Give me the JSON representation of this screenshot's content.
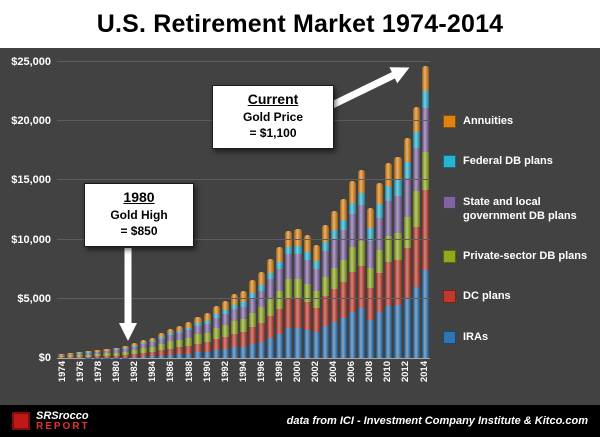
{
  "title": "U.S. Retirement Market 1974-2014",
  "annotations": {
    "current": {
      "heading": "Current",
      "line1": "Gold Price",
      "line2": "= $1,100"
    },
    "gold1980": {
      "heading": "1980",
      "line1": "Gold High",
      "line2": "= $850"
    }
  },
  "footer": {
    "logo_line1": "SRSrocco",
    "logo_line2": "REPORT",
    "source": "data from ICI - Investment Company Institute & Kitco.com"
  },
  "colors": {
    "background": "#424242",
    "annuities": "#e0820f",
    "federal_db": "#27b3d4",
    "state_local_db": "#8064a2",
    "private_db": "#8faa1b",
    "dc_plans": "#c0392b",
    "iras": "#2e75b6"
  },
  "chart_data": {
    "type": "bar",
    "stacked": true,
    "title": "U.S. Retirement Market 1974-2014",
    "xlabel": "",
    "ylabel": "",
    "ylim": [
      0,
      25000
    ],
    "yticks": [
      "$0",
      "$5,000",
      "$10,000",
      "$15,000",
      "$20,000",
      "$25,000"
    ],
    "grid": true,
    "legend_position": "right",
    "categories": [
      "1974",
      "1975",
      "1976",
      "1977",
      "1978",
      "1979",
      "1980",
      "1981",
      "1982",
      "1983",
      "1984",
      "1985",
      "1986",
      "1987",
      "1988",
      "1989",
      "1990",
      "1991",
      "1992",
      "1993",
      "1994",
      "1995",
      "1996",
      "1997",
      "1998",
      "1999",
      "2000",
      "2001",
      "2002",
      "2003",
      "2004",
      "2005",
      "2006",
      "2007",
      "2008",
      "2009",
      "2010",
      "2011",
      "2012",
      "2013",
      "2014"
    ],
    "xticks": [
      "1974",
      "1976",
      "1978",
      "1980",
      "1982",
      "1984",
      "1986",
      "1988",
      "1990",
      "1992",
      "1994",
      "1996",
      "1998",
      "2000",
      "2002",
      "2004",
      "2006",
      "2008",
      "2010",
      "2012",
      "2014"
    ],
    "series": [
      {
        "name": "IRAs",
        "color": "#2e75b6",
        "values": [
          3,
          4,
          6,
          9,
          12,
          16,
          25,
          38,
          58,
          92,
          132,
          200,
          250,
          310,
          380,
          480,
          540,
          680,
          780,
          900,
          960,
          1170,
          1350,
          1660,
          2000,
          2500,
          2560,
          2400,
          2200,
          2700,
          3060,
          3400,
          3900,
          4200,
          3200,
          3900,
          4400,
          4500,
          5000,
          6000,
          7400
        ]
      },
      {
        "name": "DC plans",
        "color": "#c0392b",
        "values": [
          70,
          85,
          100,
          115,
          130,
          150,
          180,
          210,
          260,
          320,
          370,
          450,
          530,
          580,
          640,
          730,
          780,
          920,
          1010,
          1130,
          1200,
          1420,
          1600,
          1880,
          2120,
          2460,
          2440,
          2300,
          2050,
          2500,
          2760,
          3000,
          3380,
          3550,
          2700,
          3300,
          3700,
          3800,
          4300,
          5100,
          6800
        ]
      },
      {
        "name": "Private-sector DB plans",
        "color": "#8faa1b",
        "values": [
          110,
          130,
          150,
          170,
          190,
          220,
          260,
          290,
          350,
          420,
          460,
          550,
          620,
          650,
          700,
          790,
          810,
          940,
          1000,
          1080,
          1100,
          1250,
          1330,
          1450,
          1540,
          1680,
          1660,
          1560,
          1400,
          1670,
          1800,
          1900,
          2080,
          2150,
          1700,
          1950,
          2200,
          2300,
          2600,
          3000,
          3200
        ]
      },
      {
        "name": "State and local government DB plans",
        "color": "#8064a2",
        "values": [
          85,
          100,
          115,
          130,
          150,
          170,
          200,
          225,
          270,
          320,
          370,
          440,
          510,
          550,
          610,
          700,
          750,
          870,
          950,
          1050,
          1090,
          1270,
          1410,
          1670,
          1880,
          2120,
          2170,
          2050,
          1860,
          2150,
          2350,
          2520,
          2800,
          3000,
          2300,
          2700,
          3000,
          3100,
          3300,
          3600,
          3700
        ]
      },
      {
        "name": "Federal DB plans",
        "color": "#27b3d4",
        "values": [
          30,
          35,
          40,
          46,
          53,
          60,
          70,
          80,
          95,
          110,
          125,
          145,
          165,
          185,
          210,
          235,
          260,
          290,
          320,
          350,
          380,
          420,
          460,
          500,
          540,
          580,
          620,
          660,
          700,
          760,
          820,
          880,
          950,
          1020,
          1090,
          1160,
          1240,
          1300,
          1360,
          1400,
          1440
        ]
      },
      {
        "name": "Annuities",
        "color": "#e0820f",
        "values": [
          70,
          80,
          90,
          100,
          115,
          130,
          150,
          170,
          200,
          230,
          260,
          310,
          370,
          430,
          500,
          570,
          640,
          720,
          800,
          880,
          950,
          1030,
          1100,
          1200,
          1300,
          1420,
          1440,
          1400,
          1350,
          1500,
          1600,
          1700,
          1850,
          1950,
          1700,
          1800,
          1900,
          1950,
          2000,
          2100,
          2150
        ]
      }
    ]
  }
}
